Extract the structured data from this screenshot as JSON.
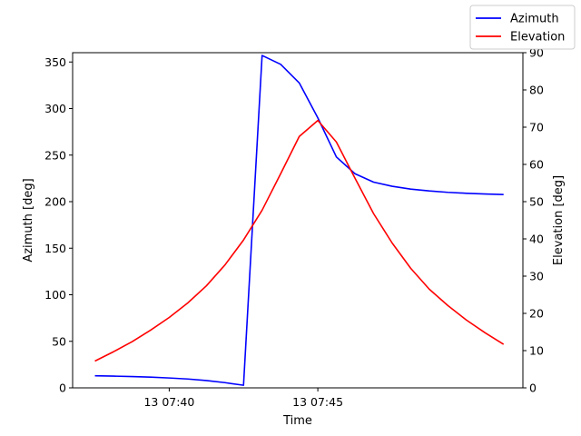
{
  "chart_data": {
    "type": "line",
    "xlabel": "Time",
    "ylabel_left": "Azimuth [deg]",
    "ylabel_right": "Elevation [deg]",
    "x_tick_labels": [
      "13 07:40",
      "13 07:45"
    ],
    "x_ticks_minutes": [
      0,
      5
    ],
    "x_range_minutes": [
      -3.25,
      11.9
    ],
    "ylim_left": [
      0,
      360
    ],
    "ylim_right": [
      0,
      90
    ],
    "y_ticks_left": [
      0,
      50,
      100,
      150,
      200,
      250,
      300,
      350
    ],
    "y_ticks_right": [
      0,
      10,
      20,
      30,
      40,
      50,
      60,
      70,
      80,
      90
    ],
    "legend_position": "top-right",
    "grid": false,
    "series": [
      {
        "name": "Azimuth",
        "axis": "left",
        "color": "#0000ff",
        "x_minutes": [
          -2.5,
          -1.875,
          -1.25,
          -0.625,
          0.0,
          0.625,
          1.25,
          1.875,
          2.5,
          3.125,
          3.75,
          4.375,
          5.0,
          5.625,
          6.25,
          6.875,
          7.5,
          8.125,
          8.75,
          9.375,
          10.0,
          10.625,
          11.25
        ],
        "values": [
          13,
          12.6,
          12.1,
          11.5,
          10.6,
          9.5,
          7.9,
          5.6,
          2.8,
          357,
          347.5,
          327.5,
          290,
          248,
          230,
          221,
          216.5,
          213.5,
          211.5,
          210,
          209,
          208.2,
          207.6
        ]
      },
      {
        "name": "Elevation",
        "axis": "right",
        "color": "#ff0000",
        "x_minutes": [
          -2.5,
          -1.875,
          -1.25,
          -0.625,
          0.0,
          0.625,
          1.25,
          1.875,
          2.5,
          3.125,
          3.75,
          4.375,
          5.0,
          5.625,
          6.25,
          6.875,
          7.5,
          8.125,
          8.75,
          9.375,
          10.0,
          10.625,
          11.25
        ],
        "values": [
          7.2,
          9.7,
          12.4,
          15.5,
          18.9,
          22.8,
          27.4,
          33.0,
          39.7,
          47.7,
          57.5,
          67.5,
          71.8,
          66.0,
          56.3,
          46.8,
          38.9,
          32.1,
          26.5,
          22.1,
          18.2,
          14.8,
          11.7
        ]
      }
    ]
  }
}
